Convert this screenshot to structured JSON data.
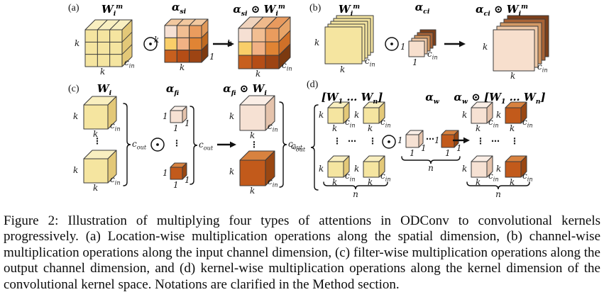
{
  "caption": "Figure 2: Illustration of multiplying four types of attentions in ODConv to convolutional kernels progressively. (a) Location-wise multiplication operations along the spatial dimension, (b) channel-wise multiplication operations along the input channel dimension, (c) filter-wise multiplication operations along the output channel dimension, and (d) kernel-wise multiplication operations along the kernel dimension of the convolutional kernel space. Notations are clarified in the Method section.",
  "panels": {
    "a": {
      "tag": "(a)",
      "w": "W<sub>i</sub><sup>m</sup>",
      "alpha": "α<sub>si</sub>",
      "result": "α<sub>si</sub> ⊙ W<sub>i</sub><sup>m</sup>"
    },
    "b": {
      "tag": "(b)",
      "w": "W<sub>i</sub><sup>m</sup>",
      "alpha": "α<sub>ci</sub>",
      "result": "α<sub>ci</sub> ⊙ W<sub>i</sub><sup>m</sup>"
    },
    "c": {
      "tag": "(c)",
      "w": "W<sub>i</sub>",
      "alpha": "α<sub>fi</sub>",
      "result": "α<sub>fi</sub> ⊙ W<sub>i</sub>"
    },
    "d": {
      "tag": "(d)",
      "w": "[W<sub>1</sub> … W<sub>n</sub>]",
      "alpha": "α<sub>w</sub>",
      "result": "α<sub>w</sub> ⊙ [W<sub>1</sub> … W<sub>n</sub>]"
    }
  },
  "sym": {
    "k": "k",
    "one": "1",
    "n": "n",
    "cin": "c<sub>in</sub>",
    "cout": "c<sub>out</sub>",
    "vdots": "⋮",
    "cdots": "⋯"
  },
  "colors": {
    "line": "#3b3b3b",
    "yf": "#F5E5A0",
    "yt": "#F9EFC0",
    "ys": "#E3C878",
    "pf": "#F6E1D3",
    "pt": "#FAEEE6",
    "ps": "#E5C3AC",
    "of": "#C25A1B",
    "ot": "#D8823F",
    "os": "#9A4712",
    "a1": "#F6E0D3",
    "a2": "#F2BE92",
    "a3": "#EA9C5E",
    "a4": "#F9CE69",
    "a5": "#F1B184",
    "a6": "#E08434",
    "a7": "#C75F1E",
    "a8": "#B54D16",
    "a9": "#9D4413",
    "agt": "#F2C89F",
    "as1": "#E09858",
    "as2": "#C06A20",
    "as3": "#7E3A10",
    "rt1": "#EFD3BD",
    "rt2": "#EFB98B",
    "rt3": "#E89A5E",
    "rs1": "#E8A468",
    "rs2": "#D07028",
    "rs3": "#7C3A10",
    "s1": "#F7DFCD",
    "s2": "#EFC9A8",
    "s3": "#D49A66",
    "s4": "#A96336",
    "s5": "#7C3F1A"
  }
}
